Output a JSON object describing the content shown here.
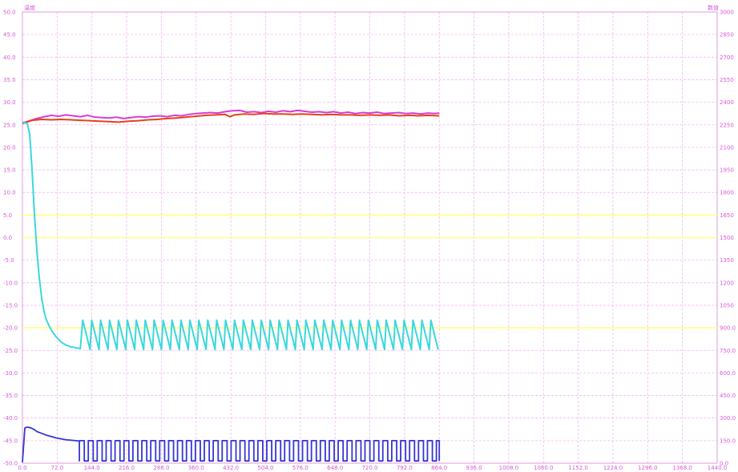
{
  "chart_data": {
    "type": "line",
    "title": "",
    "left_axis": {
      "label": "温度",
      "range": [
        -50,
        50
      ],
      "ticks": [
        "50.0",
        "45.0",
        "40.0",
        "35.0",
        "30.0",
        "25.0",
        "20.0",
        "15.0",
        "10.0",
        "5.0",
        "0.0",
        "-5.0",
        "-10.0",
        "-15.0",
        "-20.0",
        "-25.0",
        "-30.0",
        "-35.0",
        "-40.0",
        "-45.0",
        "-50.0"
      ]
    },
    "right_axis": {
      "label": "数值",
      "range": [
        0,
        3000
      ],
      "ticks": [
        "3000",
        "2850",
        "2700",
        "2550",
        "2400",
        "2250",
        "2100",
        "1950",
        "1800",
        "1650",
        "1500",
        "1350",
        "1200",
        "1050",
        "900.0",
        "750.0",
        "600.0",
        "450.0",
        "300.0",
        "150.0",
        "0.0"
      ]
    },
    "x_axis": {
      "range": [
        0,
        1440
      ],
      "ticks": [
        "0.0",
        "72.0",
        "144.0",
        "216.0",
        "288.0",
        "360.0",
        "432.0",
        "504.0",
        "576.0",
        "648.0",
        "720.0",
        "792.0",
        "864.0",
        "936.0",
        "1008.0",
        "1080.0",
        "1152.0",
        "1224.0",
        "1296.0",
        "1368.0",
        "1440.0"
      ]
    },
    "grid": true,
    "reference_lines": [
      {
        "axis": "left",
        "value": 5.0,
        "color": "#ffff80"
      },
      {
        "axis": "left",
        "value": 0.0,
        "color": "#ffff80"
      },
      {
        "axis": "left",
        "value": -20.0,
        "color": "#ffff80"
      }
    ],
    "series": [
      {
        "color": "#d63cd6",
        "axis": "left",
        "x": [
          0,
          15,
          30,
          45,
          60,
          75,
          90,
          105,
          120,
          135,
          150,
          165,
          180,
          195,
          210,
          225,
          240,
          255,
          270,
          285,
          300,
          315,
          330,
          345,
          360,
          375,
          390,
          405,
          420,
          435,
          450,
          465,
          480,
          495,
          510,
          525,
          540,
          555,
          570,
          585,
          600,
          615,
          630,
          645,
          660,
          675,
          690,
          705,
          720,
          735,
          750,
          765,
          780,
          795,
          810,
          825,
          840,
          855,
          864
        ],
        "y": [
          25.4,
          25.9,
          26.4,
          26.8,
          27.1,
          26.9,
          27.2,
          27.0,
          26.8,
          27.1,
          26.7,
          26.6,
          26.5,
          26.7,
          26.4,
          26.6,
          26.8,
          26.7,
          26.9,
          27.0,
          26.8,
          27.1,
          27.0,
          27.3,
          27.5,
          27.6,
          27.7,
          27.6,
          27.9,
          28.1,
          28.2,
          27.8,
          27.9,
          27.7,
          28.0,
          27.8,
          28.1,
          27.9,
          28.2,
          28.0,
          27.8,
          27.9,
          27.7,
          27.9,
          27.6,
          27.8,
          27.5,
          27.7,
          27.6,
          27.8,
          27.5,
          27.6,
          27.7,
          27.5,
          27.6,
          27.4,
          27.6,
          27.5,
          27.6
        ]
      },
      {
        "color": "#e8401a",
        "axis": "left",
        "x": [
          0,
          20,
          40,
          60,
          80,
          100,
          120,
          140,
          160,
          180,
          200,
          220,
          240,
          260,
          280,
          300,
          320,
          340,
          360,
          380,
          400,
          420,
          430,
          440,
          460,
          480,
          500,
          520,
          540,
          560,
          580,
          600,
          620,
          640,
          660,
          680,
          700,
          720,
          740,
          760,
          780,
          800,
          820,
          840,
          864
        ],
        "y": [
          25.3,
          26.0,
          26.2,
          26.1,
          26.2,
          26.1,
          26.0,
          25.9,
          25.8,
          25.7,
          25.6,
          25.8,
          25.9,
          26.1,
          26.2,
          26.4,
          26.5,
          26.7,
          26.9,
          27.1,
          27.2,
          27.3,
          26.8,
          27.2,
          27.4,
          27.3,
          27.5,
          27.4,
          27.4,
          27.3,
          27.4,
          27.3,
          27.2,
          27.3,
          27.2,
          27.2,
          27.1,
          27.2,
          27.1,
          27.2,
          27.0,
          27.1,
          27.0,
          27.1,
          27.0
        ]
      },
      {
        "color": "#3ad7de",
        "axis": "left",
        "x": [
          0,
          10,
          15,
          20,
          25,
          30,
          35,
          40,
          45,
          50,
          55,
          60,
          65,
          70,
          75,
          80,
          85,
          90,
          95,
          100,
          105,
          110,
          115,
          120
        ],
        "y": [
          25.6,
          25.3,
          23.0,
          15.0,
          5.0,
          -3.0,
          -9.0,
          -13.5,
          -16.5,
          -18.3,
          -19.5,
          -20.5,
          -21.3,
          -22.0,
          -22.6,
          -23.1,
          -23.5,
          -23.8,
          -24.0,
          -24.2,
          -24.3,
          -24.4,
          -24.5,
          -24.6
        ],
        "oscillation": {
          "start": 125,
          "end": 864,
          "period": 18.5,
          "peak": -18.3,
          "trough": -24.8
        }
      },
      {
        "color": "#3535d6",
        "axis": "left",
        "x": [
          0,
          5,
          10,
          15,
          20,
          25,
          30,
          40,
          50,
          60,
          70,
          80,
          90,
          100,
          110,
          118
        ],
        "y": [
          -49.8,
          -42.2,
          -42.0,
          -42.1,
          -42.3,
          -42.6,
          -43.0,
          -43.4,
          -43.8,
          -44.1,
          -44.4,
          -44.6,
          -44.8,
          -44.9,
          -45.0,
          -45.1
        ],
        "pulses": {
          "start": 118,
          "end": 864,
          "period": 18.5,
          "high": -45.0,
          "low": -49.5,
          "duty": 0.55
        }
      }
    ]
  }
}
